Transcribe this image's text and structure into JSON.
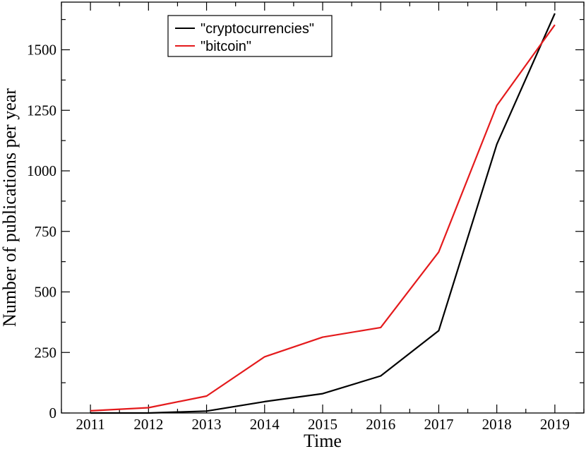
{
  "chart_data": {
    "type": "line",
    "title": "",
    "xlabel": "Time",
    "ylabel": "Number of publications per year",
    "x": [
      2011,
      2012,
      2013,
      2014,
      2015,
      2016,
      2017,
      2018,
      2019
    ],
    "xlim": [
      2010.5,
      2019.5
    ],
    "ylim": [
      0,
      1650
    ],
    "x_ticks": [
      "2011",
      "2012",
      "2013",
      "2014",
      "2015",
      "2016",
      "2017",
      "2018",
      "2019"
    ],
    "y_ticks": [
      0,
      250,
      500,
      750,
      1000,
      1250,
      1500
    ],
    "y_tick_labels": [
      "0",
      "250",
      "500",
      "750",
      "1000",
      "1250",
      "1500"
    ],
    "grid": false,
    "legend_position": "top-center",
    "series": [
      {
        "name": "\"cryptocurrencies\"",
        "color": "#000000",
        "values": [
          0,
          0,
          8,
          47,
          80,
          153,
          340,
          1110,
          1650
        ]
      },
      {
        "name": "\"bitcoin\"",
        "color": "#e41a1c",
        "values": [
          9,
          22,
          70,
          232,
          313,
          353,
          665,
          1270,
          1603
        ]
      }
    ]
  }
}
